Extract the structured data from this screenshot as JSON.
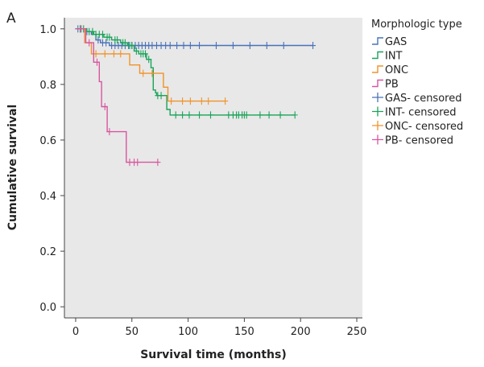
{
  "panel_label": "A",
  "chart_data": {
    "type": "line",
    "subtype": "kaplan-meier step",
    "title": "",
    "xlabel": "Survival time (months)",
    "ylabel": "Cumulative survival",
    "xlim": [
      -10,
      255
    ],
    "ylim": [
      -0.04,
      1.04
    ],
    "xticks": [
      0,
      50,
      100,
      150,
      200,
      250
    ],
    "yticks": [
      0.0,
      0.2,
      0.4,
      0.6,
      0.8,
      1.0
    ],
    "xtick_labels": [
      "0",
      "50",
      "100",
      "150",
      "200",
      "250"
    ],
    "ytick_labels": [
      "0.0",
      "0.2",
      "0.4",
      "0.6",
      "0.8",
      "1.0"
    ],
    "background": "#e8e8e8",
    "legend": {
      "title": "Morphologic type",
      "position": "right",
      "entries": [
        {
          "label": "GAS",
          "color": "#4a72b8",
          "kind": "step"
        },
        {
          "label": "INT",
          "color": "#1aa35a",
          "kind": "step"
        },
        {
          "label": "ONC",
          "color": "#f0922b",
          "kind": "step"
        },
        {
          "label": "PB",
          "color": "#d8569e",
          "kind": "step"
        },
        {
          "label": "GAS- censored",
          "color": "#4a72b8",
          "kind": "censor"
        },
        {
          "label": "INT- censored",
          "color": "#1aa35a",
          "kind": "censor"
        },
        {
          "label": "ONC- censored",
          "color": "#f0922b",
          "kind": "censor"
        },
        {
          "label": "PB- censored",
          "color": "#d8569e",
          "kind": "censor"
        }
      ]
    },
    "series": [
      {
        "name": "GAS",
        "color": "#4a72b8",
        "steps": [
          [
            0,
            1.0
          ],
          [
            8,
            0.99
          ],
          [
            14,
            0.98
          ],
          [
            18,
            0.96
          ],
          [
            22,
            0.95
          ],
          [
            30,
            0.94
          ],
          [
            211,
            0.94
          ]
        ],
        "censored": [
          [
            2,
            1.0
          ],
          [
            4,
            1.0
          ],
          [
            10,
            0.99
          ],
          [
            20,
            0.96
          ],
          [
            24,
            0.95
          ],
          [
            27,
            0.95
          ],
          [
            32,
            0.94
          ],
          [
            35,
            0.94
          ],
          [
            38,
            0.94
          ],
          [
            41,
            0.94
          ],
          [
            44,
            0.94
          ],
          [
            47,
            0.94
          ],
          [
            50,
            0.94
          ],
          [
            53,
            0.94
          ],
          [
            56,
            0.94
          ],
          [
            59,
            0.94
          ],
          [
            62,
            0.94
          ],
          [
            65,
            0.94
          ],
          [
            68,
            0.94
          ],
          [
            72,
            0.94
          ],
          [
            76,
            0.94
          ],
          [
            80,
            0.94
          ],
          [
            84,
            0.94
          ],
          [
            90,
            0.94
          ],
          [
            96,
            0.94
          ],
          [
            102,
            0.94
          ],
          [
            110,
            0.94
          ],
          [
            125,
            0.94
          ],
          [
            140,
            0.94
          ],
          [
            155,
            0.94
          ],
          [
            170,
            0.94
          ],
          [
            185,
            0.94
          ],
          [
            211,
            0.94
          ]
        ]
      },
      {
        "name": "INT",
        "color": "#1aa35a",
        "steps": [
          [
            0,
            1.0
          ],
          [
            10,
            0.99
          ],
          [
            16,
            0.98
          ],
          [
            25,
            0.97
          ],
          [
            32,
            0.96
          ],
          [
            40,
            0.95
          ],
          [
            46,
            0.94
          ],
          [
            52,
            0.92
          ],
          [
            56,
            0.91
          ],
          [
            63,
            0.89
          ],
          [
            67,
            0.86
          ],
          [
            69,
            0.78
          ],
          [
            71,
            0.77
          ],
          [
            72,
            0.76
          ],
          [
            81,
            0.71
          ],
          [
            84,
            0.69
          ],
          [
            195,
            0.69
          ]
        ],
        "censored": [
          [
            4,
            1.0
          ],
          [
            7,
            1.0
          ],
          [
            12,
            0.99
          ],
          [
            15,
            0.99
          ],
          [
            18,
            0.98
          ],
          [
            21,
            0.98
          ],
          [
            24,
            0.98
          ],
          [
            28,
            0.97
          ],
          [
            30,
            0.97
          ],
          [
            35,
            0.96
          ],
          [
            37,
            0.96
          ],
          [
            42,
            0.95
          ],
          [
            44,
            0.95
          ],
          [
            48,
            0.94
          ],
          [
            50,
            0.94
          ],
          [
            54,
            0.92
          ],
          [
            58,
            0.91
          ],
          [
            60,
            0.91
          ],
          [
            62,
            0.91
          ],
          [
            65,
            0.89
          ],
          [
            73,
            0.76
          ],
          [
            76,
            0.76
          ],
          [
            89,
            0.69
          ],
          [
            95,
            0.69
          ],
          [
            101,
            0.69
          ],
          [
            110,
            0.69
          ],
          [
            120,
            0.69
          ],
          [
            136,
            0.69
          ],
          [
            140,
            0.69
          ],
          [
            143,
            0.69
          ],
          [
            145,
            0.69
          ],
          [
            148,
            0.69
          ],
          [
            150,
            0.69
          ],
          [
            152,
            0.69
          ],
          [
            164,
            0.69
          ],
          [
            172,
            0.69
          ],
          [
            182,
            0.69
          ],
          [
            195,
            0.69
          ]
        ]
      },
      {
        "name": "ONC",
        "color": "#f0922b",
        "steps": [
          [
            0,
            1.0
          ],
          [
            8,
            0.95
          ],
          [
            14,
            0.91
          ],
          [
            48,
            0.87
          ],
          [
            57,
            0.84
          ],
          [
            78,
            0.79
          ],
          [
            82,
            0.74
          ],
          [
            133,
            0.74
          ]
        ],
        "censored": [
          [
            18,
            0.91
          ],
          [
            26,
            0.91
          ],
          [
            34,
            0.91
          ],
          [
            40,
            0.91
          ],
          [
            60,
            0.84
          ],
          [
            68,
            0.84
          ],
          [
            85,
            0.74
          ],
          [
            95,
            0.74
          ],
          [
            102,
            0.74
          ],
          [
            112,
            0.74
          ],
          [
            118,
            0.74
          ],
          [
            133,
            0.74
          ]
        ]
      },
      {
        "name": "PB",
        "color": "#d8569e",
        "steps": [
          [
            0,
            1.0
          ],
          [
            9,
            0.95
          ],
          [
            16,
            0.88
          ],
          [
            21,
            0.81
          ],
          [
            23,
            0.72
          ],
          [
            28,
            0.63
          ],
          [
            45,
            0.52
          ],
          [
            73,
            0.52
          ]
        ],
        "censored": [
          [
            5,
            1.0
          ],
          [
            12,
            0.95
          ],
          [
            19,
            0.88
          ],
          [
            26,
            0.72
          ],
          [
            30,
            0.63
          ],
          [
            48,
            0.52
          ],
          [
            52,
            0.52
          ],
          [
            55,
            0.52
          ],
          [
            73,
            0.52
          ]
        ]
      }
    ]
  }
}
